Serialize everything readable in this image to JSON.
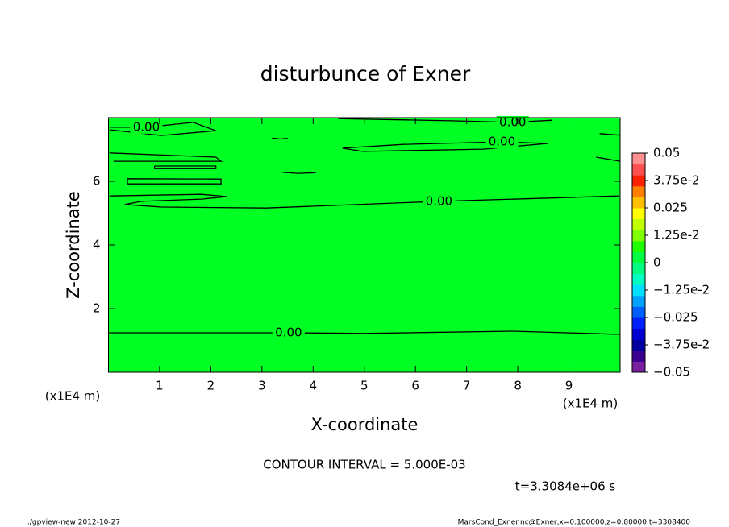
{
  "chart_data": {
    "type": "contour",
    "title": "disturbunce of Exner",
    "x_label": "X-coordinate",
    "y_label": "Z-coordinate",
    "x_unit": "(x1E4 m)",
    "y_unit": "(x1E4 m)",
    "xlim": [
      0,
      10
    ],
    "ylim": [
      0,
      8
    ],
    "xticks": [
      1,
      2,
      3,
      4,
      5,
      6,
      7,
      8,
      9
    ],
    "yticks": [
      2,
      4,
      6
    ],
    "fill_color": "#00ff22",
    "line_color": "#000000",
    "contours": [
      {
        "label": "0.00",
        "x": [
          0,
          2,
          3.52,
          5,
          7.9,
          10
        ],
        "y": [
          1.24,
          1.24,
          1.24,
          1.22,
          1.29,
          1.19
        ]
      },
      {
        "label": "0.00",
        "x": [
          0.02,
          1.82,
          2.32,
          1.82,
          0.64,
          0.32,
          1.03,
          3.08,
          6.46,
          9.97
        ],
        "y": [
          5.54,
          5.59,
          5.52,
          5.44,
          5.37,
          5.27,
          5.19,
          5.16,
          5.37,
          5.54
        ]
      },
      {
        "label": "0.00",
        "x": [
          0.02,
          0.74,
          1.66,
          2.1,
          1.03,
          0.02
        ],
        "y": [
          7.7,
          7.7,
          7.85,
          7.59,
          7.44,
          7.62
        ]
      },
      {
        "label": "0.00",
        "x": [
          4.49,
          6.7,
          7.9,
          8.67
        ],
        "y": [
          7.97,
          7.9,
          7.85,
          7.92
        ]
      },
      {
        "label": "0.00",
        "x": [
          4.57,
          5.76,
          7.69,
          8.59,
          7.33,
          4.97,
          4.57
        ],
        "y": [
          7.04,
          7.16,
          7.24,
          7.19,
          7.01,
          6.94,
          7.04
        ]
      },
      {
        "x": [
          0.02,
          2.1,
          2.2,
          0.1
        ],
        "y": [
          6.89,
          6.76,
          6.63,
          6.63
        ]
      },
      {
        "x": [
          0.9,
          2.1,
          2.1,
          0.9,
          0.9
        ],
        "y": [
          6.48,
          6.48,
          6.4,
          6.4,
          6.48
        ]
      },
      {
        "x": [
          0.37,
          2.2,
          2.2,
          0.37,
          0.37
        ],
        "y": [
          6.08,
          6.07,
          5.92,
          5.92,
          6.08
        ]
      },
      {
        "x": [
          3.2,
          3.35,
          3.5
        ],
        "y": [
          7.36,
          7.33,
          7.35
        ]
      },
      {
        "x": [
          3.4,
          3.7,
          4.05
        ],
        "y": [
          6.28,
          6.25,
          6.27
        ]
      },
      {
        "x": [
          9.6,
          10
        ],
        "y": [
          7.5,
          7.45
        ]
      },
      {
        "x": [
          9.53,
          10
        ],
        "y": [
          6.76,
          6.63
        ]
      }
    ],
    "colorbar": {
      "lim": [
        -0.05,
        0.05
      ],
      "ticks": [
        0.05,
        {
          "value": 0.0375,
          "label": "3.75e-2"
        },
        0.025,
        {
          "value": 0.0125,
          "label": "1.25e-2"
        },
        0,
        {
          "value": -0.0125,
          "label": "−1.25e-2"
        },
        {
          "value": -0.025,
          "label": "−0.025"
        },
        {
          "value": -0.0375,
          "label": "−3.75e-2"
        },
        {
          "value": -0.05,
          "label": "−0.05"
        }
      ],
      "colors": [
        "#7a1fa0",
        "#3a0090",
        "#0000a0",
        "#0000d0",
        "#0020ff",
        "#0060ff",
        "#00a0ff",
        "#00e0ff",
        "#00ffc0",
        "#00ff80",
        "#00ff40",
        "#20ff00",
        "#80ff00",
        "#c0ff00",
        "#ffff00",
        "#ffc000",
        "#ff8000",
        "#ff2000",
        "#ff5050",
        "#ff9090"
      ]
    },
    "annotations": {
      "contour_interval": "CONTOUR INTERVAL = 5.000E-03",
      "time": "t=3.3084e+06 s",
      "footer_left": "./gpview-new  2012-10-27",
      "footer_right": "MarsCond_Exner.nc@Exner,x=0:100000,z=0:80000,t=3308400"
    }
  }
}
